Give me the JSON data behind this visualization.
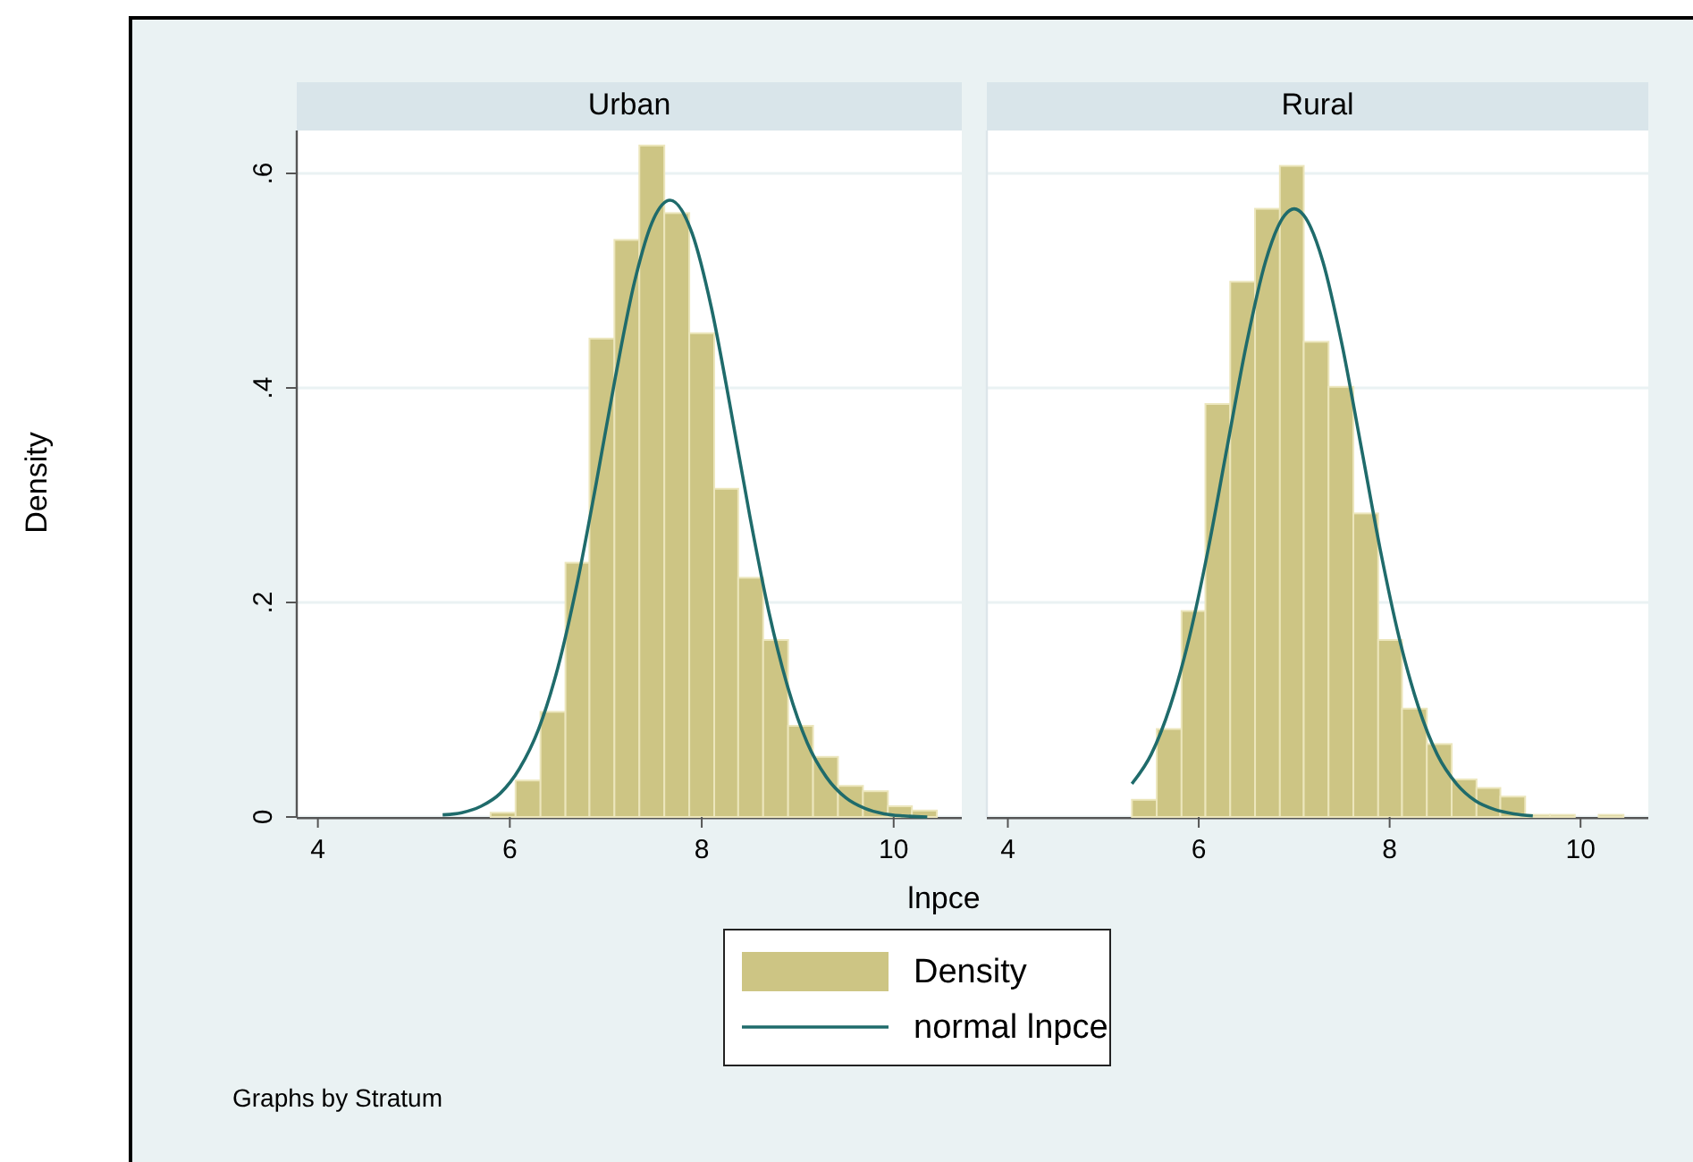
{
  "chart_data": [
    {
      "type": "histogram",
      "title": "Urban",
      "xlabel": "lnpce",
      "ylabel": "Density",
      "annotations": [
        "Graphs by Stratum"
      ],
      "legend": "bottom",
      "grid": "y",
      "xlim": [
        3.78,
        10.71
      ],
      "ylim": [
        0,
        0.64
      ],
      "xticks": [
        4,
        6,
        8,
        10
      ],
      "yticks": [
        {
          "value": 0,
          "label": "0"
        },
        {
          "value": 0.2,
          "label": ".2"
        },
        {
          "value": 0.4,
          "label": ".4"
        },
        {
          "value": 0.6,
          "label": ".6"
        }
      ],
      "bins": [
        5.8,
        6.06,
        6.32,
        6.58,
        6.83,
        7.09,
        7.35,
        7.61,
        7.87,
        8.13,
        8.38,
        8.64,
        8.9,
        9.16,
        9.42,
        9.68,
        9.94,
        10.19,
        10.45
      ],
      "series": [
        {
          "name": "Density",
          "color": "#cdc584",
          "values": [
            0.004,
            0.034,
            0.098,
            0.237,
            0.446,
            0.538,
            0.626,
            0.563,
            0.451,
            0.306,
            0.223,
            0.165,
            0.085,
            0.056,
            0.029,
            0.024,
            0.01,
            0.006
          ]
        },
        {
          "type": "line",
          "name": "normal lnpce",
          "color": "#1f6b6b",
          "x": [
            5.3,
            5.5,
            5.7,
            5.9,
            6.1,
            6.3,
            6.5,
            6.7,
            6.9,
            7.1,
            7.3,
            7.5,
            7.67,
            7.9,
            8.1,
            8.3,
            8.5,
            8.7,
            8.9,
            9.1,
            9.3,
            9.5,
            9.7,
            9.9,
            10.1,
            10.35
          ],
          "values": [
            0.002,
            0.004,
            0.01,
            0.022,
            0.045,
            0.082,
            0.139,
            0.217,
            0.311,
            0.41,
            0.499,
            0.558,
            0.575,
            0.544,
            0.475,
            0.381,
            0.281,
            0.191,
            0.12,
            0.069,
            0.037,
            0.018,
            0.008,
            0.003,
            0.001,
            0
          ]
        }
      ]
    },
    {
      "type": "histogram",
      "title": "Rural",
      "grid": "y",
      "tick_labels": "x",
      "xlim": [
        3.78,
        10.71
      ],
      "ylim": [
        0,
        0.64
      ],
      "xticks": [
        4,
        6,
        8,
        10
      ],
      "yticks": [
        {
          "value": 0,
          "label": null
        },
        {
          "value": 0.2,
          "label": null
        },
        {
          "value": 0.4,
          "label": null
        },
        {
          "value": 0.6,
          "label": null
        }
      ],
      "bins": [
        5.3,
        5.56,
        5.82,
        6.07,
        6.33,
        6.59,
        6.85,
        7.1,
        7.36,
        7.62,
        7.88,
        8.13,
        8.39,
        8.65,
        8.91,
        9.16,
        9.42,
        9.68,
        9.94,
        10.19,
        10.45
      ],
      "series": [
        {
          "color": "#cdc584",
          "values": [
            0.016,
            0.082,
            0.192,
            0.385,
            0.499,
            0.567,
            0.607,
            0.443,
            0.401,
            0.283,
            0.165,
            0.101,
            0.068,
            0.035,
            0.027,
            0.019,
            0.002,
            0.002,
            0,
            0.002
          ]
        },
        {
          "type": "line",
          "color": "#1f6b6b",
          "x": [
            5.3,
            5.5,
            5.7,
            5.9,
            6.1,
            6.3,
            6.5,
            6.7,
            6.9,
            7.0,
            7.1,
            7.3,
            7.5,
            7.7,
            7.9,
            8.1,
            8.3,
            8.5,
            8.7,
            8.9,
            9.1,
            9.3,
            9.5
          ],
          "values": [
            0.031,
            0.058,
            0.103,
            0.167,
            0.25,
            0.346,
            0.441,
            0.518,
            0.561,
            0.567,
            0.561,
            0.518,
            0.441,
            0.346,
            0.25,
            0.167,
            0.103,
            0.058,
            0.031,
            0.015,
            0.007,
            0.003,
            0.001
          ]
        }
      ]
    }
  ]
}
